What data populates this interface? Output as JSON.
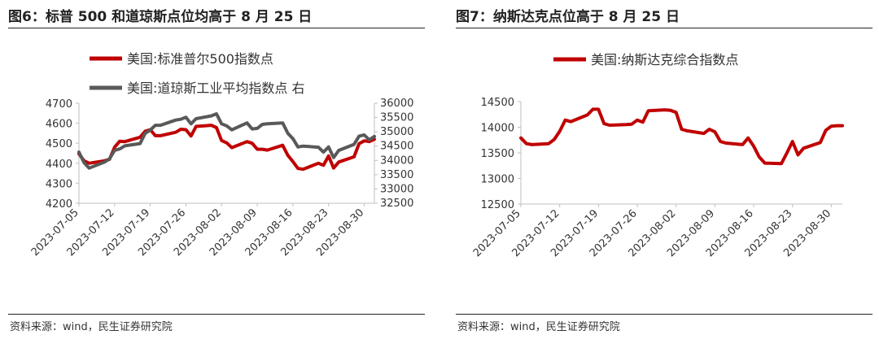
{
  "left": {
    "title": "图6：标普 500 和道琼斯点位均高于 8 月 25 日",
    "source": "资料来源：wind，民生证券研究院"
  },
  "right": {
    "title": "图7：纳斯达克点位高于 8 月 25 日",
    "source": "资料来源：wind，民生证券研究院"
  },
  "colors": {
    "red": "#c00000",
    "gray": "#595959"
  },
  "chart_data": [
    {
      "type": "line",
      "title": "图6：标普 500 和道琼斯点位均高于 8 月 25 日",
      "x_ticks": [
        "2023-07-05",
        "2023-07-12",
        "2023-07-19",
        "2023-07-26",
        "2023-08-02",
        "2023-08-09",
        "2023-08-16",
        "2023-08-23",
        "2023-08-30"
      ],
      "x": [
        "2023-07-05",
        "2023-07-06",
        "2023-07-07",
        "2023-07-10",
        "2023-07-11",
        "2023-07-12",
        "2023-07-13",
        "2023-07-14",
        "2023-07-17",
        "2023-07-18",
        "2023-07-19",
        "2023-07-20",
        "2023-07-21",
        "2023-07-24",
        "2023-07-25",
        "2023-07-26",
        "2023-07-27",
        "2023-07-28",
        "2023-07-31",
        "2023-08-01",
        "2023-08-02",
        "2023-08-03",
        "2023-08-04",
        "2023-08-07",
        "2023-08-08",
        "2023-08-09",
        "2023-08-10",
        "2023-08-11",
        "2023-08-14",
        "2023-08-15",
        "2023-08-16",
        "2023-08-17",
        "2023-08-18",
        "2023-08-21",
        "2023-08-22",
        "2023-08-23",
        "2023-08-24",
        "2023-08-25",
        "2023-08-28",
        "2023-08-29",
        "2023-08-30",
        "2023-08-31",
        "2023-09-01"
      ],
      "yleft_ticks": [
        "4200",
        "4300",
        "4400",
        "4500",
        "4600",
        "4700"
      ],
      "yleft_lim": [
        4200,
        4700
      ],
      "yright_ticks": [
        "32500",
        "33000",
        "33500",
        "34000",
        "34500",
        "35000",
        "35500",
        "36000"
      ],
      "yright_lim": [
        32500,
        36000
      ],
      "legend_position": "top-left",
      "series": [
        {
          "name": "美国:标准普尔500指数点",
          "axis": "left",
          "color": "#c00000",
          "values": [
            4447,
            4412,
            4400,
            4412,
            4420,
            4480,
            4510,
            4508,
            4530,
            4560,
            4568,
            4538,
            4538,
            4555,
            4570,
            4568,
            4536,
            4584,
            4590,
            4578,
            4514,
            4502,
            4478,
            4508,
            4500,
            4470,
            4470,
            4466,
            4490,
            4440,
            4408,
            4374,
            4370,
            4400,
            4390,
            4436,
            4376,
            4406,
            4432,
            4498,
            4512,
            4508,
            4520
          ]
        },
        {
          "name": "美国:道琼斯工业平均指数点 右",
          "axis": "right",
          "color": "#595959",
          "values": [
            34290,
            33920,
            33730,
            33940,
            34060,
            34350,
            34400,
            34510,
            34590,
            34950,
            35060,
            35230,
            35230,
            35410,
            35440,
            35510,
            35280,
            35460,
            35560,
            35630,
            35280,
            35210,
            35070,
            35310,
            35100,
            35120,
            35260,
            35280,
            35310,
            34950,
            34760,
            34470,
            34500,
            34460,
            34290,
            34470,
            34100,
            34350,
            34560,
            34850,
            34890,
            34720,
            34840
          ]
        }
      ]
    },
    {
      "type": "line",
      "title": "图7：纳斯达克点位高于 8 月 25 日",
      "x_ticks": [
        "2023-07-05",
        "2023-07-12",
        "2023-07-19",
        "2023-07-26",
        "2023-08-02",
        "2023-08-09",
        "2023-08-16",
        "2023-08-23",
        "2023-08-30"
      ],
      "x": [
        "2023-07-05",
        "2023-07-06",
        "2023-07-07",
        "2023-07-10",
        "2023-07-11",
        "2023-07-12",
        "2023-07-13",
        "2023-07-14",
        "2023-07-17",
        "2023-07-18",
        "2023-07-19",
        "2023-07-20",
        "2023-07-21",
        "2023-07-24",
        "2023-07-25",
        "2023-07-26",
        "2023-07-27",
        "2023-07-28",
        "2023-07-31",
        "2023-08-01",
        "2023-08-02",
        "2023-08-03",
        "2023-08-04",
        "2023-08-07",
        "2023-08-08",
        "2023-08-09",
        "2023-08-10",
        "2023-08-11",
        "2023-08-14",
        "2023-08-15",
        "2023-08-16",
        "2023-08-17",
        "2023-08-18",
        "2023-08-21",
        "2023-08-22",
        "2023-08-23",
        "2023-08-24",
        "2023-08-25",
        "2023-08-28",
        "2023-08-29",
        "2023-08-30",
        "2023-08-31",
        "2023-09-01"
      ],
      "y_ticks": [
        "12500",
        "13000",
        "13500",
        "14000",
        "14500"
      ],
      "ylim": [
        12500,
        14500
      ],
      "legend_position": "top",
      "series": [
        {
          "name": "美国:纳斯达克综合指数点",
          "axis": "left",
          "color": "#c00000",
          "values": [
            13790,
            13680,
            13660,
            13680,
            13760,
            13920,
            14140,
            14110,
            14240,
            14350,
            14350,
            14070,
            14040,
            14050,
            14060,
            14140,
            14100,
            14320,
            14340,
            14330,
            14290,
            13960,
            13930,
            13880,
            13960,
            13910,
            13720,
            13690,
            13660,
            13790,
            13630,
            13420,
            13300,
            13290,
            13500,
            13720,
            13460,
            13590,
            13700,
            13940,
            14020,
            14030,
            14030
          ]
        }
      ]
    }
  ]
}
